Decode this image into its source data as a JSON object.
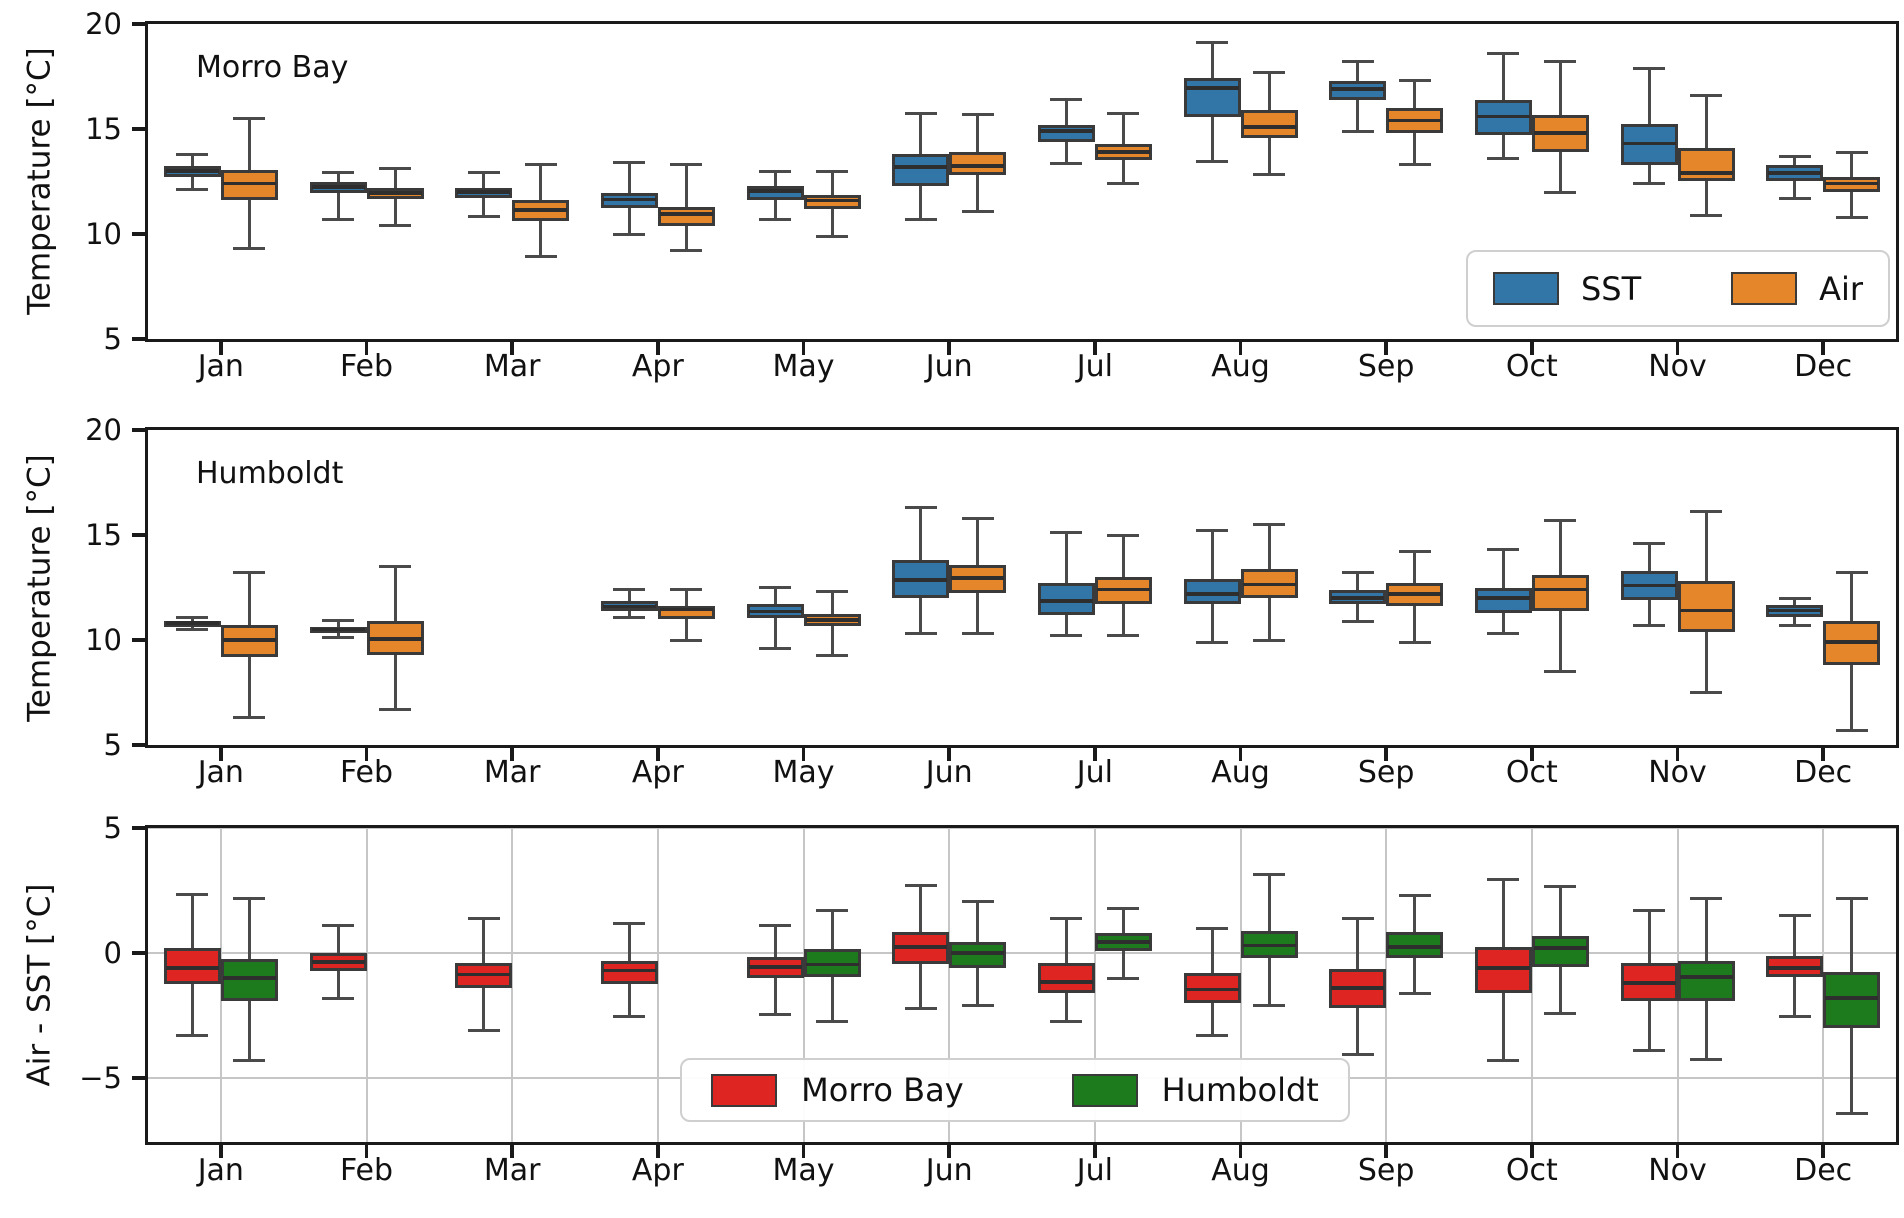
{
  "chart_data": {
    "type": "boxplot",
    "figure_background": "#ffffff",
    "months": [
      "Jan",
      "Feb",
      "Mar",
      "Apr",
      "May",
      "Jun",
      "Jul",
      "Aug",
      "Sep",
      "Oct",
      "Nov",
      "Dec"
    ],
    "colors": {
      "sst_blue": "#3276a8",
      "air_orange": "#e6862a",
      "morro_bay_red": "#df2522",
      "humboldt_green": "#1d7a1d",
      "box_edge": "#3a3a3a",
      "grid": "#c6c6c6"
    },
    "box_format": [
      "whisker_low",
      "q1",
      "median",
      "q3",
      "whisker_high"
    ],
    "panels": [
      {
        "id": "morro-bay-temperature",
        "title": "Morro Bay",
        "ylabel": "Temperature [°C]",
        "ylim": [
          5,
          20
        ],
        "yticks": [
          20,
          15,
          10,
          5
        ],
        "grid": false,
        "legend": {
          "location": "lower-right",
          "items": [
            {
              "label": "SST",
              "color": "#3276a8"
            },
            {
              "label": "Air",
              "color": "#e6862a"
            }
          ]
        },
        "series": [
          {
            "name": "SST",
            "color": "#3276a8",
            "boxes": [
              [
                12.1,
                12.7,
                13.0,
                13.25,
                13.8
              ],
              [
                10.7,
                11.95,
                12.25,
                12.5,
                12.95
              ],
              [
                10.85,
                11.7,
                12.0,
                12.2,
                12.95
              ],
              [
                10.0,
                11.25,
                11.65,
                11.95,
                13.4
              ],
              [
                10.7,
                11.6,
                12.05,
                12.3,
                13.0
              ],
              [
                10.7,
                12.3,
                13.2,
                13.8,
                15.75
              ],
              [
                13.35,
                14.4,
                14.9,
                15.2,
                16.4
              ],
              [
                13.45,
                15.55,
                16.95,
                17.45,
                19.1
              ],
              [
                14.9,
                16.4,
                16.9,
                17.3,
                18.2
              ],
              [
                13.6,
                14.7,
                15.6,
                16.4,
                18.6
              ],
              [
                12.4,
                13.3,
                14.3,
                15.25,
                17.9
              ],
              [
                11.7,
                12.5,
                12.9,
                13.3,
                13.7
              ]
            ]
          },
          {
            "name": "Air",
            "color": "#e6862a",
            "boxes": [
              [
                9.3,
                11.6,
                12.4,
                13.05,
                15.5
              ],
              [
                10.4,
                11.65,
                11.95,
                12.2,
                13.1
              ],
              [
                8.95,
                10.6,
                11.15,
                11.6,
                13.3
              ],
              [
                9.2,
                10.4,
                10.95,
                11.3,
                13.3
              ],
              [
                9.9,
                11.2,
                11.6,
                11.85,
                13.0
              ],
              [
                11.05,
                12.8,
                13.25,
                13.9,
                15.7
              ],
              [
                12.4,
                13.5,
                13.9,
                14.3,
                15.75
              ],
              [
                12.85,
                14.55,
                15.1,
                15.9,
                17.7
              ],
              [
                13.3,
                14.8,
                15.4,
                16.0,
                17.3
              ],
              [
                12.0,
                13.9,
                14.8,
                15.65,
                18.2
              ],
              [
                10.9,
                12.5,
                12.9,
                14.1,
                16.6
              ],
              [
                10.8,
                12.0,
                12.4,
                12.7,
                13.9
              ]
            ]
          }
        ]
      },
      {
        "id": "humboldt-temperature",
        "title": "Humboldt",
        "ylabel": "Temperature [°C]",
        "ylim": [
          5,
          20
        ],
        "yticks": [
          20,
          15,
          10,
          5
        ],
        "grid": false,
        "legend": null,
        "series": [
          {
            "name": "SST",
            "color": "#3276a8",
            "boxes": [
              [
                10.5,
                10.7,
                10.8,
                10.9,
                11.05
              ],
              [
                10.1,
                10.4,
                10.5,
                10.6,
                10.95
              ],
              null,
              [
                11.05,
                11.4,
                11.6,
                11.85,
                12.4
              ],
              [
                9.6,
                11.05,
                11.35,
                11.7,
                12.5
              ],
              [
                10.3,
                12.0,
                12.85,
                13.8,
                16.3
              ],
              [
                10.2,
                11.2,
                11.85,
                12.7,
                15.1
              ],
              [
                9.9,
                11.7,
                12.2,
                12.9,
                15.2
              ],
              [
                10.9,
                11.7,
                12.0,
                12.4,
                13.2
              ],
              [
                10.3,
                11.3,
                12.0,
                12.5,
                14.3
              ],
              [
                10.7,
                11.9,
                12.6,
                13.3,
                14.6
              ],
              [
                10.7,
                11.1,
                11.4,
                11.65,
                12.0
              ]
            ]
          },
          {
            "name": "Air",
            "color": "#e6862a",
            "boxes": [
              [
                6.3,
                9.2,
                10.0,
                10.7,
                13.2
              ],
              [
                6.7,
                9.3,
                10.05,
                10.9,
                13.5
              ],
              null,
              [
                10.0,
                11.0,
                11.45,
                11.6,
                12.4
              ],
              [
                9.25,
                10.65,
                10.95,
                11.25,
                12.3
              ],
              [
                10.3,
                12.25,
                12.95,
                13.55,
                15.8
              ],
              [
                10.2,
                11.7,
                12.4,
                13.0,
                15.0
              ],
              [
                10.0,
                12.0,
                12.65,
                13.4,
                15.5
              ],
              [
                9.9,
                11.6,
                12.2,
                12.7,
                14.2
              ],
              [
                8.5,
                11.4,
                12.4,
                13.1,
                15.7
              ],
              [
                7.5,
                10.4,
                11.4,
                12.8,
                16.1
              ],
              [
                5.7,
                8.8,
                9.9,
                10.9,
                13.2
              ]
            ]
          }
        ]
      },
      {
        "id": "air-minus-sst-difference",
        "title": "",
        "ylabel": "Air - SST [°C]",
        "ylim": [
          -7.56,
          5
        ],
        "yticks": [
          5,
          0,
          -5
        ],
        "grid": true,
        "legend": {
          "location": "lower-center",
          "items": [
            {
              "label": "Morro Bay",
              "color": "#df2522"
            },
            {
              "label": "Humboldt",
              "color": "#1d7a1d"
            }
          ]
        },
        "series": [
          {
            "name": "Morro Bay",
            "color": "#df2522",
            "boxes": [
              [
                -3.3,
                -1.25,
                -0.6,
                0.2,
                2.35
              ],
              [
                -1.8,
                -0.7,
                -0.35,
                0.0,
                1.1
              ],
              [
                -3.1,
                -1.4,
                -0.85,
                -0.4,
                1.4
              ],
              [
                -2.55,
                -1.25,
                -0.7,
                -0.3,
                1.2
              ],
              [
                -2.45,
                -1.0,
                -0.55,
                -0.15,
                1.1
              ],
              [
                -2.2,
                -0.45,
                0.25,
                0.85,
                2.7
              ],
              [
                -2.75,
                -1.6,
                -1.15,
                -0.4,
                1.4
              ],
              [
                -3.3,
                -2.0,
                -1.45,
                -0.8,
                1.0
              ],
              [
                -4.05,
                -2.2,
                -1.4,
                -0.65,
                1.4
              ],
              [
                -4.3,
                -1.6,
                -0.6,
                0.25,
                2.95
              ],
              [
                -3.9,
                -1.9,
                -1.2,
                -0.4,
                1.7
              ],
              [
                -2.55,
                -0.95,
                -0.6,
                -0.1,
                1.5
              ]
            ]
          },
          {
            "name": "Humboldt",
            "color": "#1d7a1d",
            "boxes": [
              [
                -4.3,
                -1.9,
                -1.0,
                -0.25,
                2.2
              ],
              null,
              null,
              null,
              [
                -2.75,
                -0.95,
                -0.45,
                0.15,
                1.7
              ],
              [
                -2.1,
                -0.6,
                0.0,
                0.45,
                2.05
              ],
              [
                -1.0,
                0.1,
                0.45,
                0.8,
                1.8
              ],
              [
                -2.1,
                -0.2,
                0.3,
                0.9,
                3.15
              ],
              [
                -1.6,
                -0.2,
                0.25,
                0.85,
                2.3
              ],
              [
                -2.4,
                -0.55,
                0.2,
                0.7,
                2.65
              ],
              [
                -4.25,
                -1.9,
                -0.95,
                -0.3,
                2.2
              ],
              [
                -6.4,
                -3.0,
                -1.8,
                -0.75,
                2.2
              ]
            ]
          }
        ]
      }
    ]
  }
}
